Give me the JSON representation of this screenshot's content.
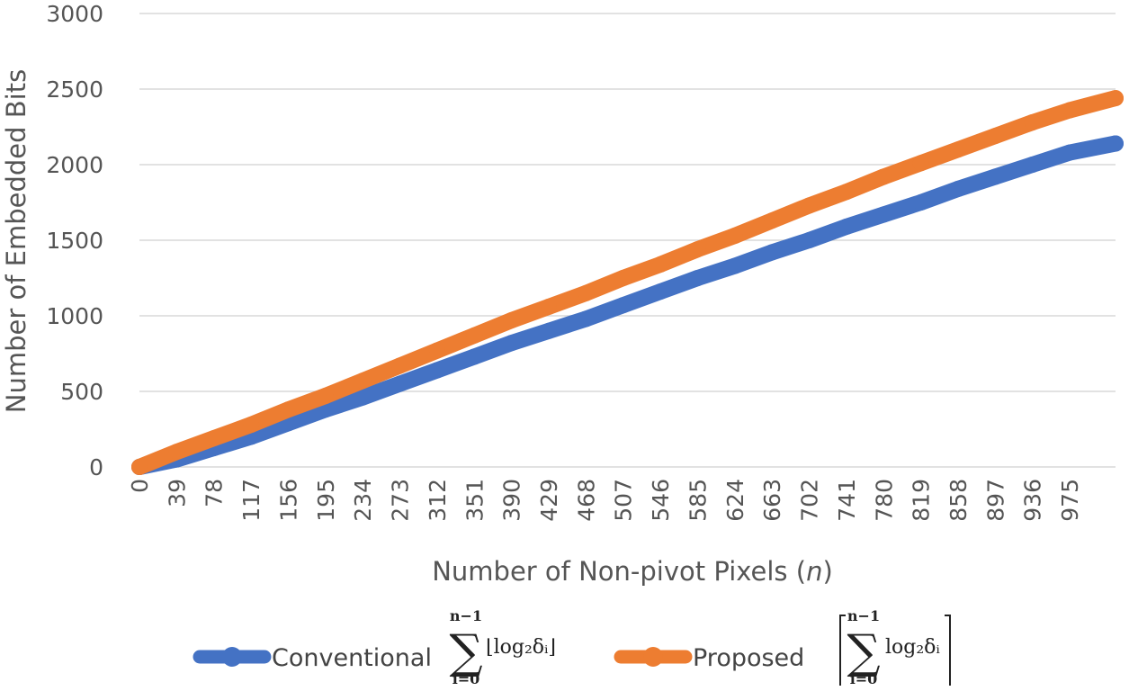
{
  "chart_data": {
    "type": "line",
    "xlabel_main": "Number of Non-pivot Pixels (",
    "xlabel_var": "n",
    "xlabel_end": ")",
    "ylabel": "Number of Embedded Bits",
    "ylim": [
      0,
      3000
    ],
    "yticks": [
      "0",
      "500",
      "1000",
      "1500",
      "2000",
      "2500",
      "3000"
    ],
    "xlim": [
      0,
      1023
    ],
    "xticks": [
      "0",
      "39",
      "78",
      "117",
      "156",
      "195",
      "234",
      "273",
      "312",
      "351",
      "390",
      "429",
      "468",
      "507",
      "546",
      "585",
      "624",
      "663",
      "702",
      "741",
      "780",
      "819",
      "858",
      "897",
      "936",
      "975"
    ],
    "grid": true,
    "legend_position": "bottom",
    "series": [
      {
        "name": "Conventional",
        "formula": {
          "sum_upper": "n−1",
          "sum_lower": "i=0",
          "term": "⌊log₂δᵢ⌋"
        },
        "color": "#4472c4",
        "x": [
          0,
          39,
          78,
          117,
          156,
          195,
          234,
          273,
          312,
          351,
          390,
          429,
          468,
          507,
          546,
          585,
          624,
          663,
          702,
          741,
          780,
          819,
          858,
          897,
          936,
          975,
          1023
        ],
        "values": [
          0,
          50,
          125,
          200,
          290,
          380,
          460,
          550,
          640,
          730,
          820,
          900,
          980,
          1070,
          1160,
          1250,
          1330,
          1420,
          1500,
          1590,
          1670,
          1750,
          1840,
          1920,
          2000,
          2080,
          2140
        ]
      },
      {
        "name": "Proposed",
        "formula": {
          "sum_upper": "n−1",
          "sum_lower": "i=0",
          "term": "log₂δᵢ"
        },
        "color": "#ed7d31",
        "x": [
          0,
          39,
          78,
          117,
          156,
          195,
          234,
          273,
          312,
          351,
          390,
          429,
          468,
          507,
          546,
          585,
          624,
          663,
          702,
          741,
          780,
          819,
          858,
          897,
          936,
          975,
          1023
        ],
        "values": [
          0,
          100,
          190,
          280,
          380,
          470,
          570,
          670,
          770,
          870,
          970,
          1060,
          1150,
          1250,
          1340,
          1440,
          1530,
          1630,
          1730,
          1820,
          1920,
          2010,
          2100,
          2190,
          2280,
          2360,
          2440
        ]
      }
    ]
  }
}
